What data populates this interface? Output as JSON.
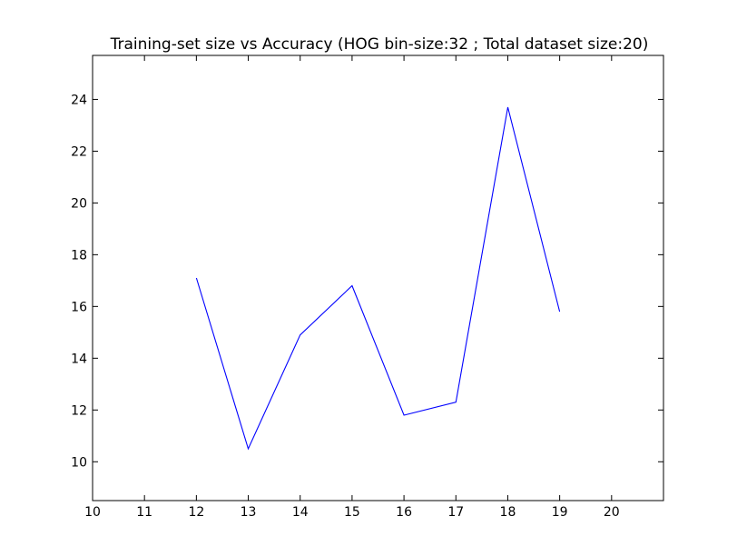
{
  "chart_data": {
    "type": "line",
    "title": "Training-set size vs Accuracy (HOG bin-size:32 ; Total dataset size:20)",
    "xlabel": "",
    "ylabel": "",
    "xlim": [
      10,
      21
    ],
    "ylim": [
      8.5,
      25.7
    ],
    "x_ticks": [
      10,
      11,
      12,
      13,
      14,
      15,
      16,
      17,
      18,
      19,
      20
    ],
    "y_ticks": [
      10,
      12,
      14,
      16,
      18,
      20,
      22,
      24
    ],
    "grid": false,
    "series": [
      {
        "color": "#0000ff",
        "x": [
          12,
          13,
          14,
          15,
          16,
          17,
          18,
          19
        ],
        "y": [
          17.1,
          10.5,
          14.9,
          16.8,
          11.8,
          12.3,
          23.7,
          15.8
        ]
      }
    ]
  }
}
